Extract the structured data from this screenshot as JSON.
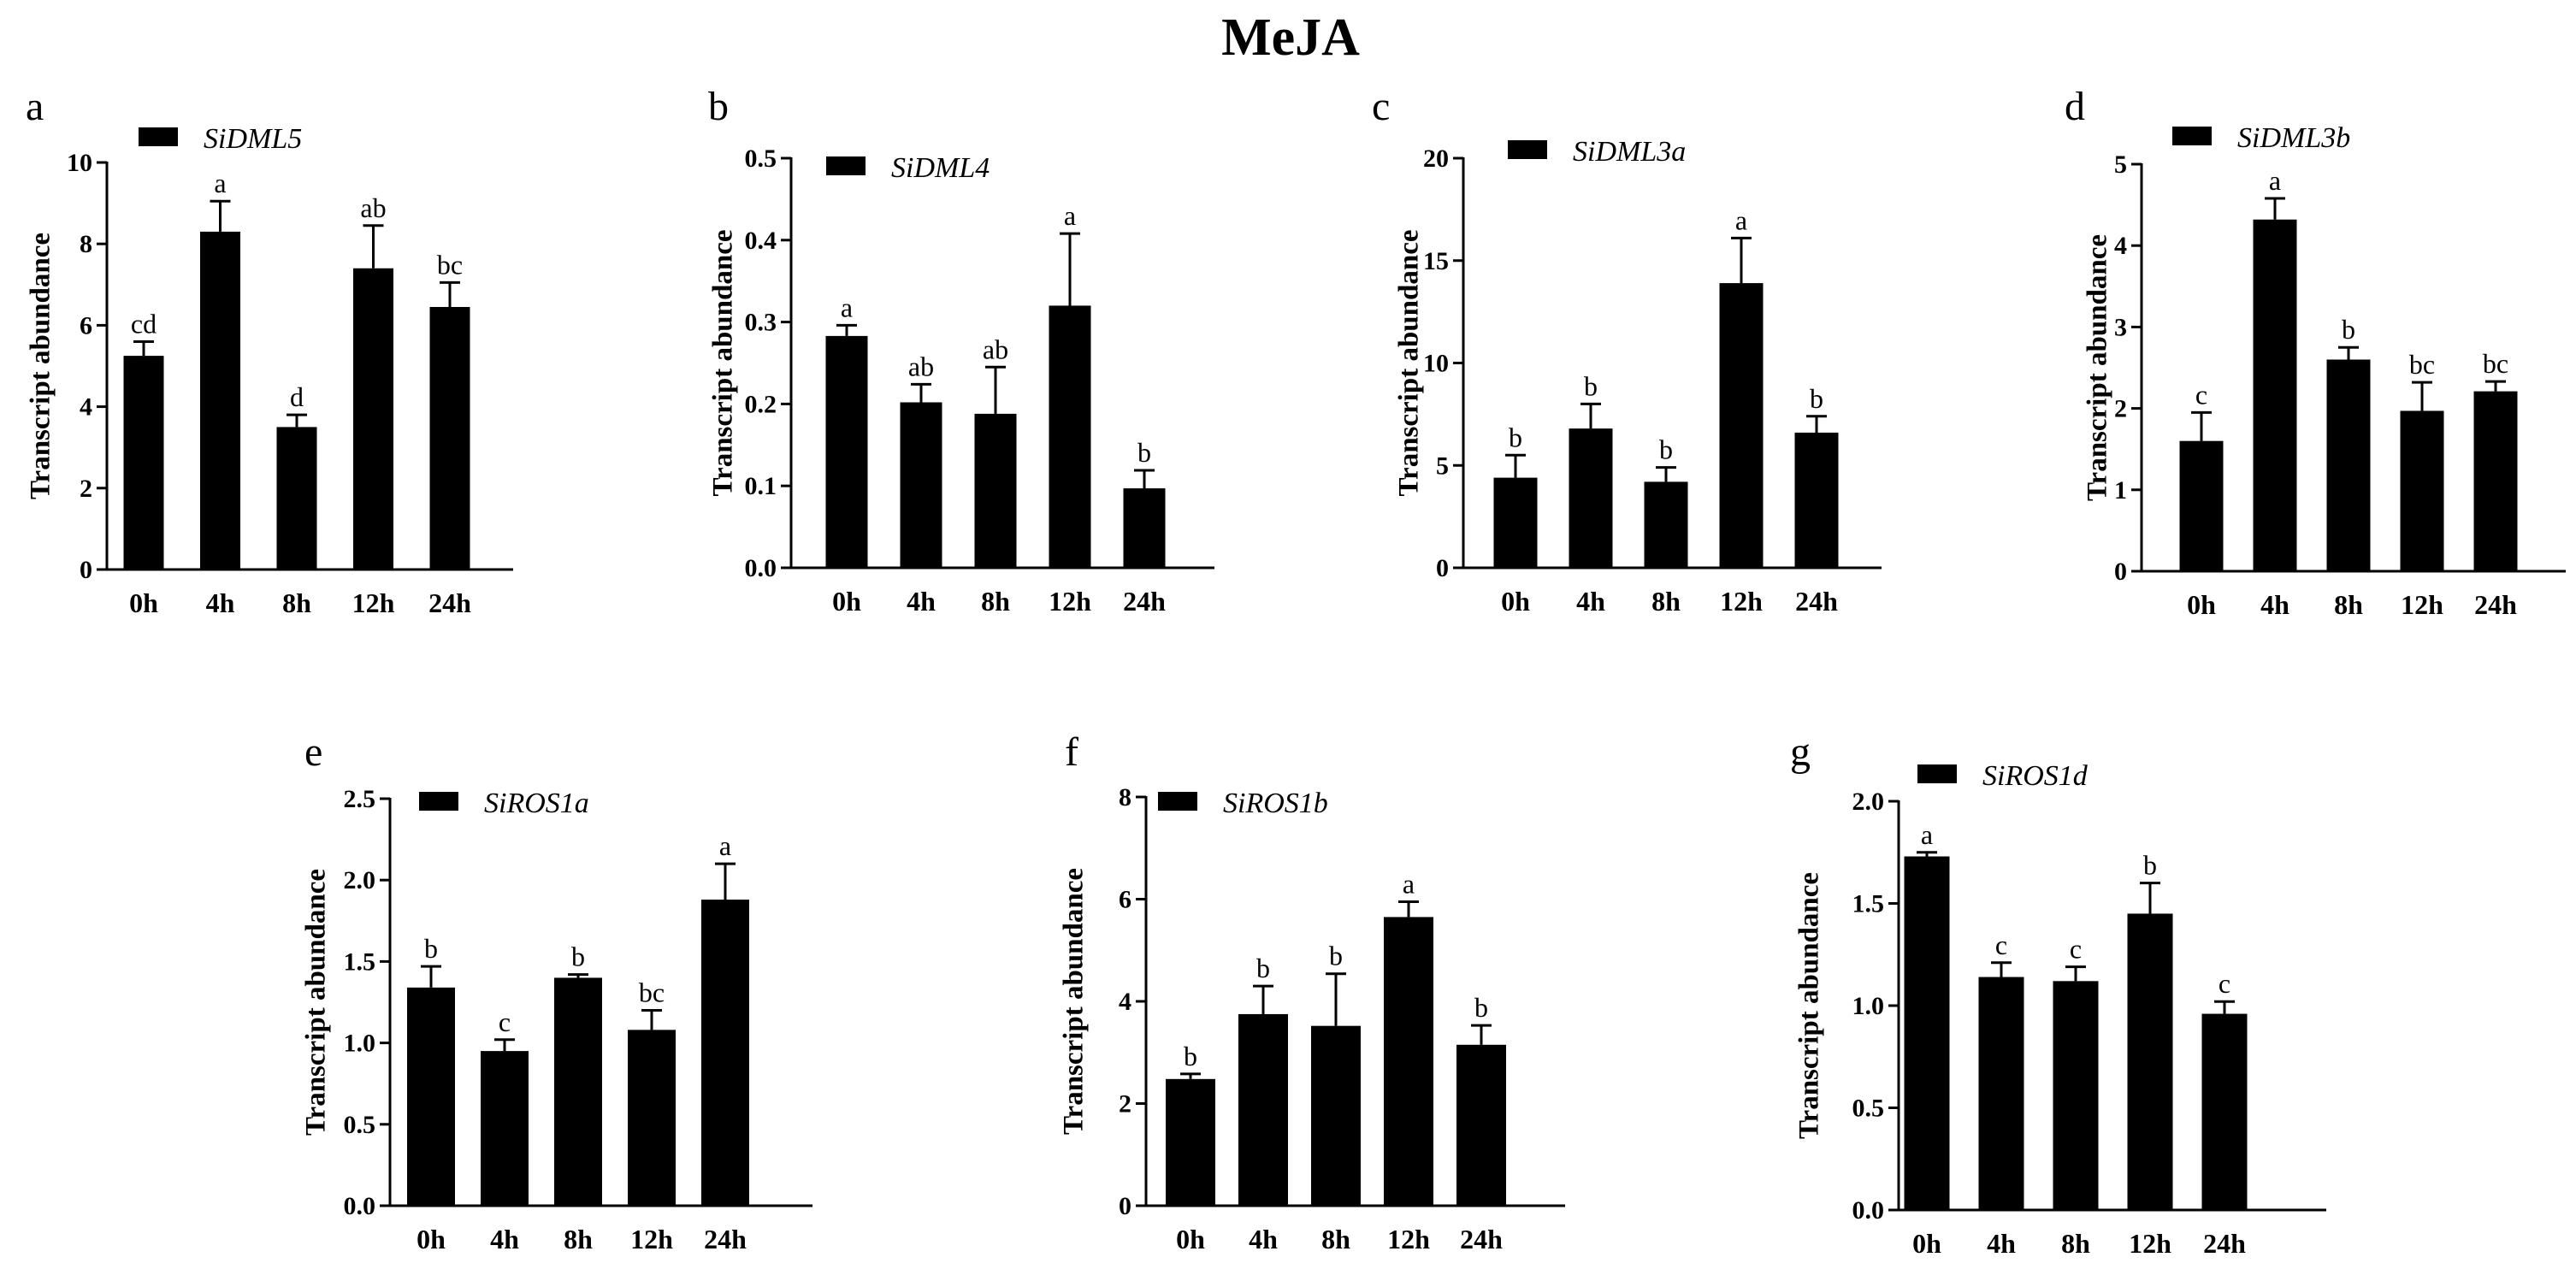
{
  "title": "MeJA",
  "chart_data": [
    {
      "type": "bar",
      "panel": "a",
      "legend": "SiDML5",
      "categories": [
        "0h",
        "4h",
        "8h",
        "12h",
        "24h"
      ],
      "values": [
        5.25,
        8.3,
        3.5,
        7.4,
        6.45
      ],
      "errors": [
        0.35,
        0.75,
        0.3,
        1.05,
        0.6
      ],
      "significance": [
        "cd",
        "a",
        "d",
        "ab",
        "bc"
      ],
      "ylabel": "Transcript abundance",
      "ylim": [
        0,
        10
      ],
      "yticks": [
        "0",
        "2",
        "4",
        "6",
        "8",
        "10"
      ]
    },
    {
      "type": "bar",
      "panel": "b",
      "legend": "SiDML4",
      "categories": [
        "0h",
        "4h",
        "8h",
        "12h",
        "24h"
      ],
      "values": [
        0.283,
        0.202,
        0.188,
        0.32,
        0.097
      ],
      "errors": [
        0.013,
        0.022,
        0.057,
        0.088,
        0.022
      ],
      "significance": [
        "a",
        "ab",
        "ab",
        "a",
        "b"
      ],
      "ylabel": "Transcript abundance",
      "ylim": [
        0,
        0.5
      ],
      "yticks": [
        "0.0",
        "0.1",
        "0.2",
        "0.3",
        "0.4",
        "0.5"
      ]
    },
    {
      "type": "bar",
      "panel": "c",
      "legend": "SiDML3a",
      "categories": [
        "0h",
        "4h",
        "8h",
        "12h",
        "24h"
      ],
      "values": [
        4.4,
        6.8,
        4.2,
        13.9,
        6.6
      ],
      "errors": [
        1.1,
        1.2,
        0.7,
        2.2,
        0.8
      ],
      "significance": [
        "b",
        "b",
        "b",
        "a",
        "b"
      ],
      "ylabel": "Transcript abundance",
      "ylim": [
        0,
        20
      ],
      "yticks": [
        "0",
        "5",
        "10",
        "15",
        "20"
      ]
    },
    {
      "type": "bar",
      "panel": "d",
      "legend": "SiDML3b",
      "categories": [
        "0h",
        "4h",
        "8h",
        "12h",
        "24h"
      ],
      "values": [
        1.6,
        4.32,
        2.6,
        1.97,
        2.21
      ],
      "errors": [
        0.35,
        0.26,
        0.15,
        0.35,
        0.12
      ],
      "significance": [
        "c",
        "a",
        "b",
        "bc",
        "bc"
      ],
      "ylabel": "Transcript abundance",
      "ylim": [
        0,
        5
      ],
      "yticks": [
        "0",
        "1",
        "2",
        "3",
        "4",
        "5"
      ]
    },
    {
      "type": "bar",
      "panel": "e",
      "legend": "SiROS1a",
      "categories": [
        "0h",
        "4h",
        "8h",
        "12h",
        "24h"
      ],
      "values": [
        1.34,
        0.95,
        1.4,
        1.08,
        1.88
      ],
      "errors": [
        0.13,
        0.07,
        0.02,
        0.12,
        0.22
      ],
      "significance": [
        "b",
        "c",
        "b",
        "bc",
        "a"
      ],
      "ylabel": "Transcript abundance",
      "ylim": [
        0,
        2.5
      ],
      "yticks": [
        "0.0",
        "0.5",
        "1.0",
        "1.5",
        "2.0",
        "2.5"
      ]
    },
    {
      "type": "bar",
      "panel": "f",
      "legend": "SiROS1b",
      "categories": [
        "0h",
        "4h",
        "8h",
        "12h",
        "24h"
      ],
      "values": [
        2.48,
        3.75,
        3.52,
        5.65,
        3.15
      ],
      "errors": [
        0.1,
        0.55,
        1.02,
        0.3,
        0.38
      ],
      "significance": [
        "b",
        "b",
        "b",
        "a",
        "b"
      ],
      "ylabel": "Transcript abundance",
      "ylim": [
        0,
        8
      ],
      "yticks": [
        "0",
        "2",
        "4",
        "6",
        "8"
      ]
    },
    {
      "type": "bar",
      "panel": "g",
      "legend": "SiROS1d",
      "categories": [
        "0h",
        "4h",
        "8h",
        "12h",
        "24h"
      ],
      "values": [
        1.73,
        1.14,
        1.12,
        1.45,
        0.96
      ],
      "errors": [
        0.02,
        0.07,
        0.07,
        0.15,
        0.06
      ],
      "significance": [
        "a",
        "c",
        "c",
        "b",
        "c"
      ],
      "ylabel": "Transcript abundance",
      "ylim": [
        0,
        2.0
      ],
      "yticks": [
        "0.0",
        "0.5",
        "1.0",
        "1.5",
        "2.0"
      ]
    }
  ]
}
